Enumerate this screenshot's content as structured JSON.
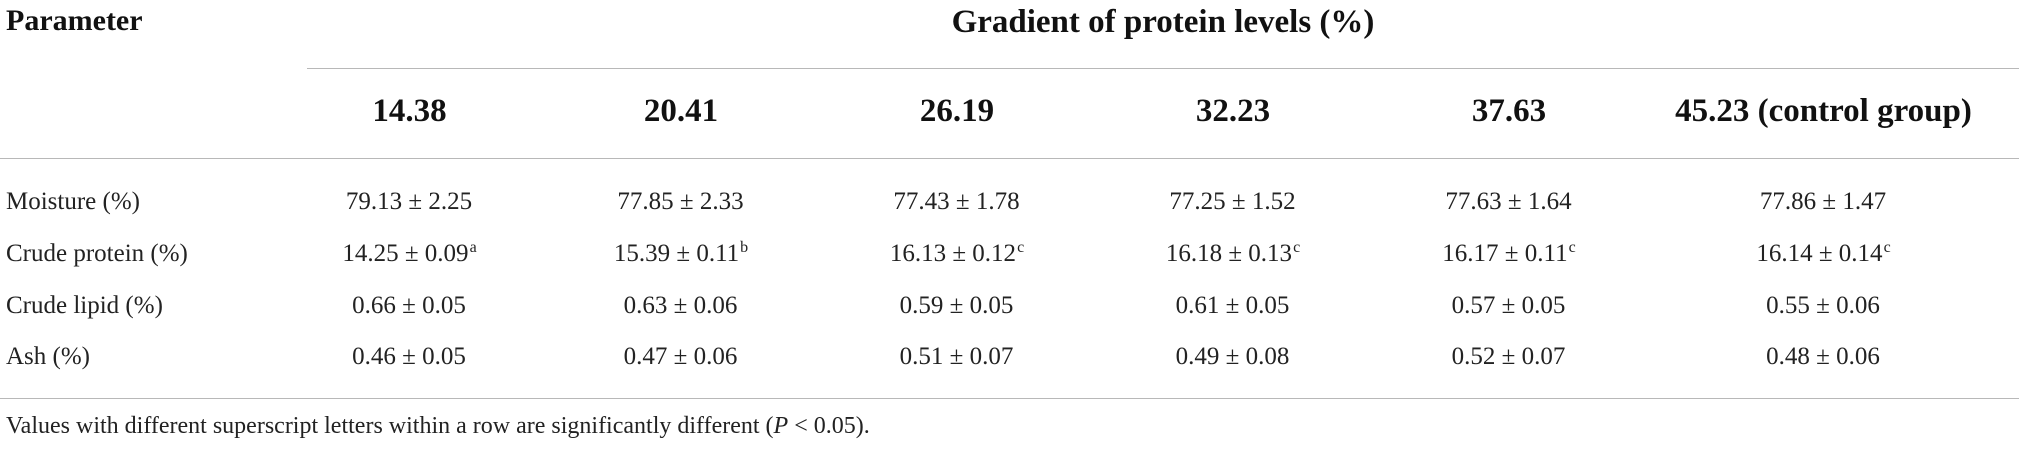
{
  "header": {
    "parameter_label": "Parameter",
    "group_label": "Gradient of protein levels (%)"
  },
  "columns": [
    "14.38",
    "20.41",
    "26.19",
    "32.23",
    "37.63",
    "45.23 (control group)"
  ],
  "rows": [
    {
      "label": "Moisture (%)",
      "cells": [
        {
          "value": "79.13 ± 2.25",
          "sup": ""
        },
        {
          "value": "77.85 ± 2.33",
          "sup": ""
        },
        {
          "value": "77.43 ± 1.78",
          "sup": ""
        },
        {
          "value": "77.25 ± 1.52",
          "sup": ""
        },
        {
          "value": "77.63 ± 1.64",
          "sup": ""
        },
        {
          "value": "77.86 ± 1.47",
          "sup": ""
        }
      ]
    },
    {
      "label": "Crude protein (%)",
      "cells": [
        {
          "value": "14.25 ± 0.09",
          "sup": "a"
        },
        {
          "value": "15.39 ± 0.11",
          "sup": "b"
        },
        {
          "value": "16.13 ± 0.12",
          "sup": "c"
        },
        {
          "value": "16.18 ± 0.13",
          "sup": "c"
        },
        {
          "value": "16.17 ± 0.11",
          "sup": "c"
        },
        {
          "value": "16.14 ± 0.14",
          "sup": "c"
        }
      ]
    },
    {
      "label": "Crude lipid (%)",
      "cells": [
        {
          "value": "0.66 ± 0.05",
          "sup": ""
        },
        {
          "value": "0.63 ± 0.06",
          "sup": ""
        },
        {
          "value": "0.59 ± 0.05",
          "sup": ""
        },
        {
          "value": "0.61 ± 0.05",
          "sup": ""
        },
        {
          "value": "0.57 ± 0.05",
          "sup": ""
        },
        {
          "value": "0.55 ± 0.06",
          "sup": ""
        }
      ]
    },
    {
      "label": "Ash (%)",
      "cells": [
        {
          "value": "0.46 ± 0.05",
          "sup": ""
        },
        {
          "value": "0.47 ± 0.06",
          "sup": ""
        },
        {
          "value": "0.51 ± 0.07",
          "sup": ""
        },
        {
          "value": "0.49 ± 0.08",
          "sup": ""
        },
        {
          "value": "0.52 ± 0.07",
          "sup": ""
        },
        {
          "value": "0.48 ± 0.06",
          "sup": ""
        }
      ]
    }
  ],
  "footnote": {
    "before": "Values with different superscript letters within a row are significantly different (",
    "italic": "P",
    "after": " < 0.05)."
  }
}
